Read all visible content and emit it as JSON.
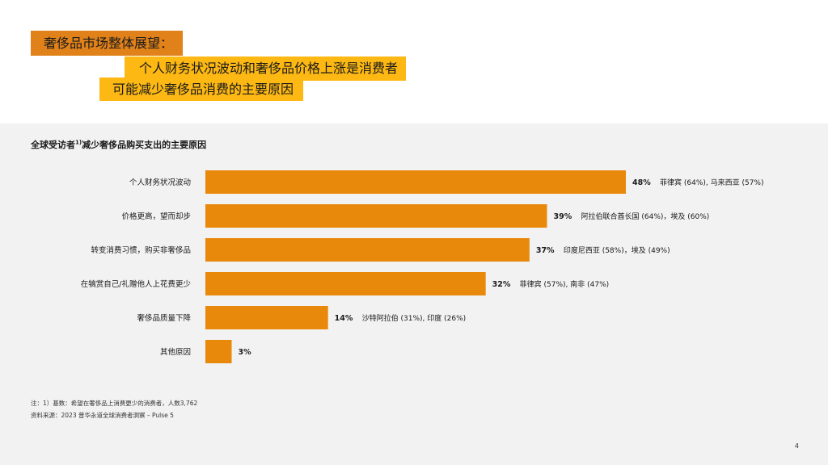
{
  "headline": {
    "main": "奢侈品市场整体展望：",
    "sub_line1": "个人财务状况波动和奢侈品价格上涨是消费者",
    "sub_line2": "可能减少奢侈品消费的主要原因"
  },
  "chart_data": {
    "type": "bar",
    "orientation": "horizontal",
    "title": "全球受访者",
    "title_superscript": "1)",
    "title_suffix": "减少奢侈品购买支出的主要原因",
    "categories": [
      "个人财务状况波动",
      "价格更高，望而却步",
      "转变消费习惯，购买非奢侈品",
      "在犒赏自己/礼赠他人上花费更少",
      "奢侈品质量下降",
      "其他原因"
    ],
    "values": [
      48,
      39,
      37,
      32,
      14,
      3
    ],
    "value_labels": [
      "48%",
      "39%",
      "37%",
      "32%",
      "14%",
      "3%"
    ],
    "annotations": [
      "菲律宾 (64%), 马来西亚 (57%)",
      "阿拉伯联合酋长国 (64%)，埃及 (60%)",
      "印度尼西亚 (58%)，埃及 (49%)",
      "菲律宾 (57%), 南非 (47%)",
      "沙特阿拉伯 (31%), 印度 (26%)",
      ""
    ],
    "xlim": [
      0,
      48
    ],
    "grid": false,
    "legend": "none",
    "bar_color": "#e8890c"
  },
  "notes": {
    "footnote": "注：1）基数：希望在奢侈品上消费更少的消费者，人数3,762",
    "source": "资料来源：2023 普华永道全球消费者洞察 – Pulse 5"
  },
  "page_number": "4"
}
